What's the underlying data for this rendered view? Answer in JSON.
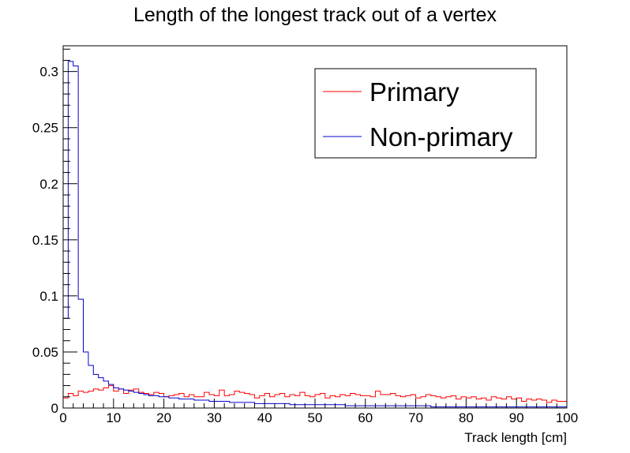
{
  "chart_data": {
    "type": "line",
    "title": "Length of the longest track out of a vertex",
    "xlabel": "Track length [cm]",
    "ylabel": "",
    "xlim": [
      0,
      100
    ],
    "ylim": [
      0,
      0.323
    ],
    "x_ticks": [
      0,
      10,
      20,
      30,
      40,
      50,
      60,
      70,
      80,
      90,
      100
    ],
    "y_ticks": [
      0,
      0.05,
      0.1,
      0.15,
      0.2,
      0.25,
      0.3
    ],
    "x_tick_labels": [
      "0",
      "10",
      "20",
      "30",
      "40",
      "50",
      "60",
      "70",
      "80",
      "90",
      "100"
    ],
    "y_tick_labels": [
      "0",
      "0.05",
      "0.1",
      "0.15",
      "0.2",
      "0.25",
      "0.3"
    ],
    "grid": false,
    "legend_position": "top-right",
    "bin_width": 1,
    "series": [
      {
        "name": "Primary",
        "color": "#ff0000",
        "values": [
          0.009,
          0.013,
          0.011,
          0.015,
          0.014,
          0.015,
          0.017,
          0.016,
          0.018,
          0.02,
          0.015,
          0.017,
          0.013,
          0.016,
          0.017,
          0.014,
          0.013,
          0.012,
          0.014,
          0.013,
          0.01,
          0.011,
          0.012,
          0.013,
          0.01,
          0.012,
          0.01,
          0.01,
          0.014,
          0.012,
          0.011,
          0.016,
          0.011,
          0.012,
          0.015,
          0.014,
          0.013,
          0.012,
          0.009,
          0.011,
          0.013,
          0.01,
          0.012,
          0.013,
          0.01,
          0.012,
          0.011,
          0.014,
          0.011,
          0.01,
          0.012,
          0.013,
          0.009,
          0.011,
          0.01,
          0.012,
          0.011,
          0.013,
          0.012,
          0.011,
          0.011,
          0.01,
          0.015,
          0.012,
          0.012,
          0.013,
          0.011,
          0.01,
          0.011,
          0.012,
          0.009,
          0.01,
          0.012,
          0.011,
          0.01,
          0.009,
          0.01,
          0.011,
          0.008,
          0.01,
          0.009,
          0.01,
          0.008,
          0.009,
          0.007,
          0.01,
          0.009,
          0.008,
          0.01,
          0.008,
          0.009,
          0.006,
          0.008,
          0.007,
          0.008,
          0.007,
          0.005,
          0.007,
          0.006,
          0.006
        ]
      },
      {
        "name": "Non-primary",
        "color": "#0000cc",
        "values": [
          0.08,
          0.309,
          0.305,
          0.097,
          0.05,
          0.038,
          0.03,
          0.027,
          0.024,
          0.021,
          0.018,
          0.017,
          0.016,
          0.015,
          0.014,
          0.013,
          0.012,
          0.011,
          0.011,
          0.01,
          0.01,
          0.009,
          0.009,
          0.008,
          0.008,
          0.008,
          0.007,
          0.007,
          0.007,
          0.006,
          0.006,
          0.006,
          0.006,
          0.005,
          0.005,
          0.005,
          0.005,
          0.005,
          0.004,
          0.004,
          0.004,
          0.004,
          0.004,
          0.004,
          0.004,
          0.003,
          0.003,
          0.003,
          0.003,
          0.003,
          0.003,
          0.003,
          0.003,
          0.003,
          0.003,
          0.003,
          0.002,
          0.002,
          0.002,
          0.002,
          0.002,
          0.002,
          0.002,
          0.002,
          0.002,
          0.002,
          0.002,
          0.002,
          0.002,
          0.002,
          0.002,
          0.002,
          0.002,
          0.001,
          0.001,
          0.001,
          0.001,
          0.001,
          0.001,
          0.001,
          0.001,
          0.001,
          0.001,
          0.001,
          0.001,
          0.001,
          0.001,
          0.001,
          0.001,
          0.001,
          0.001,
          0.001,
          0.001,
          0.001,
          0.001,
          0.001,
          0.001,
          0.001,
          0.001,
          0.001
        ]
      }
    ]
  }
}
